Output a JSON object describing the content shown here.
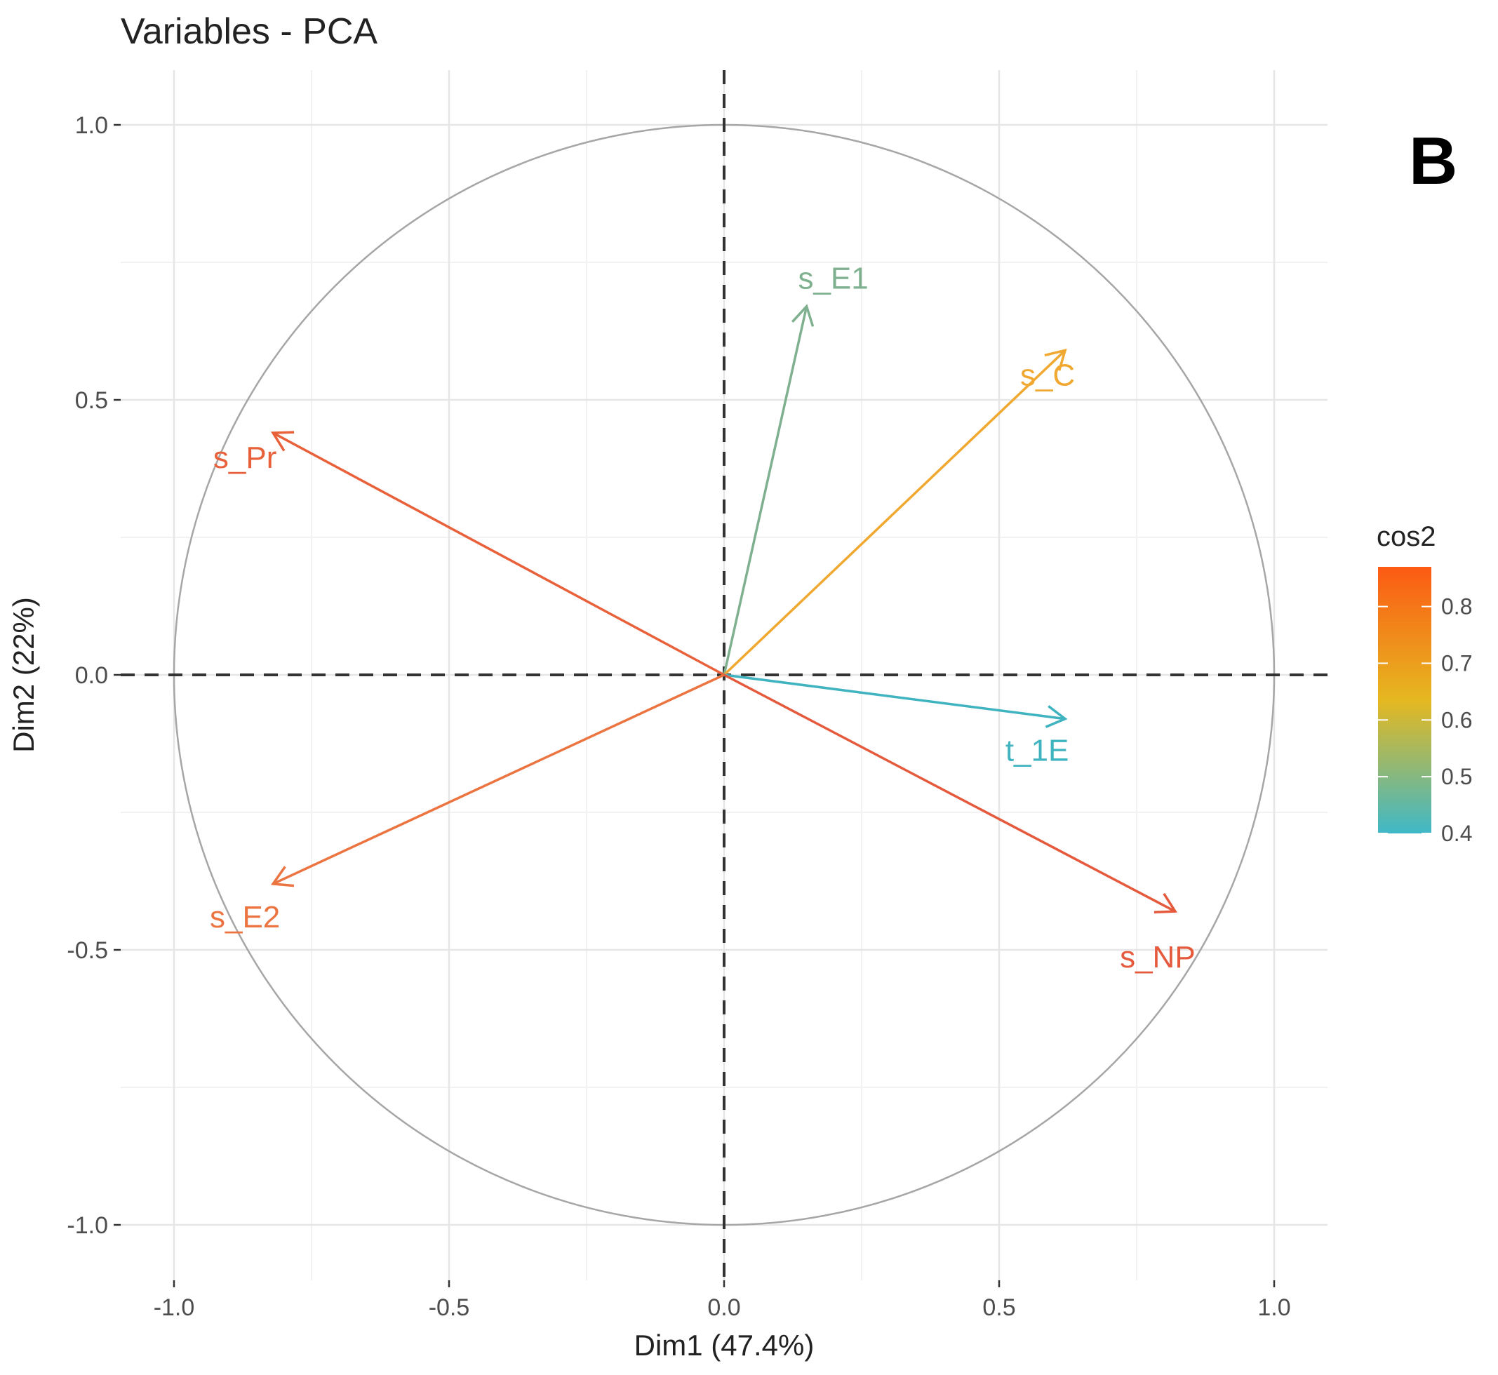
{
  "panel_letter": "B",
  "chart_data": {
    "type": "scatter",
    "subtype": "pca-variable-correlation-circle",
    "title": "Variables - PCA",
    "xlabel": "Dim1 (47.4%)",
    "ylabel": "Dim2 (22%)",
    "xlim": [
      -1.1,
      1.1
    ],
    "ylim": [
      -1.1,
      1.1
    ],
    "x_ticks": [
      -1.0,
      -0.5,
      0.0,
      0.5,
      1.0
    ],
    "x_tick_labels": [
      "-1.0",
      "-0.5",
      "0.0",
      "0.5",
      "1.0"
    ],
    "y_ticks": [
      1.0,
      0.5,
      0.0,
      -0.5,
      -1.0
    ],
    "y_tick_labels": [
      "1.0",
      "0.5",
      "0.0",
      "-0.5",
      "-1.0"
    ],
    "grid": true,
    "unit_circle": true,
    "variables": [
      {
        "name": "s_E1",
        "x": 0.15,
        "y": 0.67,
        "cos2": 0.47,
        "color": "#7fb08f"
      },
      {
        "name": "s_C",
        "x": 0.62,
        "y": 0.59,
        "cos2": 0.71,
        "color": "#f0a830"
      },
      {
        "name": "s_Pr",
        "x": -0.82,
        "y": 0.44,
        "cos2": 0.87,
        "color": "#e8613a"
      },
      {
        "name": "t_1E",
        "x": 0.62,
        "y": -0.08,
        "cos2": 0.4,
        "color": "#3fb3c0"
      },
      {
        "name": "s_E2",
        "x": -0.82,
        "y": -0.38,
        "cos2": 0.82,
        "color": "#eb7440"
      },
      {
        "name": "s_NP",
        "x": 0.82,
        "y": -0.43,
        "cos2": 0.86,
        "color": "#e55a3c"
      }
    ],
    "legend": {
      "title": "cos2",
      "position": "right",
      "range": [
        0.4,
        0.87
      ],
      "ticks": [
        0.8,
        0.7,
        0.6,
        0.5,
        0.4
      ],
      "tick_labels": [
        "0.8",
        "0.7",
        "0.6",
        "0.5",
        "0.4"
      ],
      "gradient_colors": [
        "#3fb8c8",
        "#e5b820",
        "#fc5a14"
      ]
    }
  }
}
